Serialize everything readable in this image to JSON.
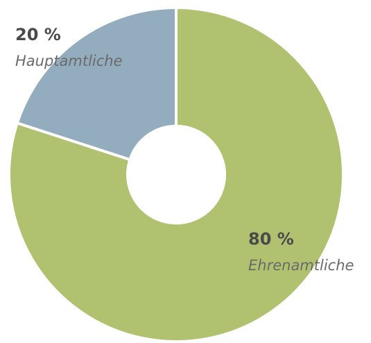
{
  "chart_data": {
    "type": "donut",
    "categories": [
      "Ehrenamtliche",
      "Hauptamtliche"
    ],
    "values": [
      80,
      20
    ],
    "value_labels": [
      "80 %",
      "20 %"
    ],
    "colors": [
      "#b0c270",
      "#93adbf"
    ]
  }
}
